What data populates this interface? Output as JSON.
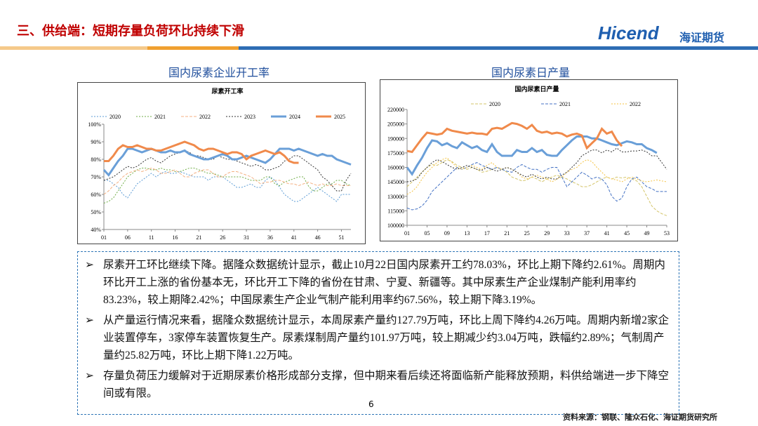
{
  "header": {
    "title": "三、供给端：短期存量负荷环比持续下滑",
    "logo": "Hicend",
    "logo_cn": "海证期货"
  },
  "chart_data": [
    {
      "type": "line",
      "heading": "国内尿素企业开工率",
      "title": "尿素开工率",
      "categories": [
        "01",
        null,
        null,
        null,
        null,
        "06",
        null,
        null,
        null,
        null,
        "11",
        null,
        null,
        null,
        null,
        "16",
        null,
        null,
        null,
        null,
        "21",
        null,
        null,
        null,
        null,
        "26",
        null,
        null,
        null,
        null,
        "31",
        null,
        null,
        null,
        null,
        "36",
        null,
        null,
        null,
        null,
        "41",
        null,
        null,
        null,
        null,
        "46",
        null,
        null,
        null,
        null,
        "51",
        null,
        null
      ],
      "ylim": [
        40,
        100
      ],
      "yticks": [
        {
          "value": 40,
          "label": "40%"
        },
        {
          "value": 50,
          "label": "50%"
        },
        {
          "value": 60,
          "label": "60%"
        },
        {
          "value": 70,
          "label": "70%"
        },
        {
          "value": 80,
          "label": "80%"
        },
        {
          "value": 90,
          "label": "90%"
        },
        {
          "value": 100,
          "label": "100%"
        }
      ],
      "series": [
        {
          "name": "2020",
          "color": "#5b9bd5",
          "dash": "dotted",
          "values": [
            68,
            68,
            66,
            64,
            60,
            58,
            62,
            66,
            68,
            70,
            72,
            70,
            72,
            73,
            72,
            72,
            73,
            72,
            71,
            70,
            70,
            70,
            68,
            70,
            70,
            70,
            68,
            66,
            64,
            64,
            65,
            66,
            64,
            64,
            68,
            70,
            68,
            64,
            60,
            58,
            56,
            56,
            58,
            60,
            62,
            64,
            62,
            60,
            58,
            56,
            60,
            60,
            60
          ]
        },
        {
          "name": "2021",
          "color": "#70ad47",
          "dash": "dotted",
          "values": [
            55,
            56,
            58,
            62,
            66,
            70,
            72,
            74,
            75,
            75,
            74,
            74,
            75,
            74,
            74,
            73,
            73,
            74,
            75,
            75,
            74,
            73,
            72,
            72,
            71,
            70,
            70,
            70,
            70,
            70,
            69,
            68,
            68,
            68,
            70,
            70,
            66,
            65,
            67,
            68,
            69,
            70,
            70,
            65,
            62,
            62,
            64,
            66,
            66,
            68,
            68,
            66,
            65
          ]
        },
        {
          "name": "2022",
          "color": "#f4b183",
          "dash": "dashed",
          "values": [
            60,
            62,
            65,
            67,
            70,
            72,
            73,
            74,
            73,
            74,
            75,
            74,
            72,
            72,
            73,
            74,
            72,
            70,
            70,
            72,
            73,
            74,
            74,
            72,
            70,
            70,
            72,
            73,
            73,
            72,
            71,
            70,
            68,
            66,
            67,
            67,
            68,
            68,
            67,
            66,
            66,
            65,
            66,
            67,
            66,
            65,
            66,
            65,
            65,
            66,
            65,
            65,
            65
          ]
        },
        {
          "name": "2023",
          "color": "#333333",
          "dash": "dotted",
          "values": [
            68,
            69,
            70,
            72,
            74,
            76,
            75,
            76,
            78,
            80,
            81,
            79,
            78,
            80,
            82,
            83,
            84,
            85,
            84,
            82,
            82,
            81,
            80,
            80,
            82,
            81,
            80,
            80,
            79,
            78,
            77,
            76,
            77,
            76,
            74,
            74,
            75,
            76,
            79,
            80,
            82,
            82,
            80,
            78,
            76,
            74,
            70,
            68,
            65,
            62,
            62,
            68,
            72
          ]
        },
        {
          "name": "2024",
          "color": "#6a9fd8",
          "dash": "solid",
          "values": [
            74,
            71,
            75,
            79,
            82,
            86,
            86,
            85,
            84,
            85,
            86,
            85,
            84,
            84,
            85,
            84,
            84,
            85,
            83,
            82,
            81,
            80,
            80,
            81,
            82,
            83,
            82,
            80,
            80,
            81,
            82,
            81,
            80,
            79,
            78,
            80,
            83,
            86,
            86,
            86,
            85,
            86,
            85,
            84,
            83,
            82,
            83,
            82,
            82,
            80,
            79,
            78,
            77
          ]
        },
        {
          "name": "2025",
          "color": "#f08a4b",
          "dash": "solid",
          "values": [
            79,
            79,
            82,
            86,
            88,
            87,
            87,
            88,
            87,
            86,
            86,
            85,
            85,
            86,
            87,
            88,
            89,
            90,
            89,
            88,
            86,
            85,
            86,
            86,
            85,
            84,
            83,
            84,
            84,
            83,
            80,
            82,
            83,
            84,
            85,
            84,
            83,
            84,
            82,
            79,
            78,
            78,
            null,
            null,
            null,
            null,
            null,
            null,
            null,
            null,
            null,
            null,
            null
          ]
        }
      ]
    },
    {
      "type": "line",
      "heading": "国内尿素日产量",
      "title": "国内尿素日产量",
      "categories": [
        "01",
        null,
        null,
        null,
        "05",
        null,
        null,
        null,
        "09",
        null,
        null,
        null,
        "13",
        null,
        null,
        null,
        "17",
        null,
        null,
        null,
        "21",
        null,
        null,
        null,
        "25",
        null,
        null,
        null,
        "29",
        null,
        null,
        null,
        "33",
        null,
        null,
        null,
        "37",
        null,
        null,
        null,
        "41",
        null,
        null,
        null,
        "45",
        null,
        null,
        null,
        "49",
        null,
        null,
        null,
        "53"
      ],
      "ylim": [
        100000,
        220000
      ],
      "yticks": [
        100000,
        115000,
        130000,
        145000,
        160000,
        175000,
        190000,
        205000,
        220000
      ],
      "series": [
        {
          "name": "2020",
          "color": "#d4c56a",
          "dash": "dashed",
          "values": [
            140000,
            145000,
            150000,
            155000,
            160000,
            163000,
            162000,
            165000,
            168000,
            166000,
            162000,
            160000,
            158000,
            160000,
            158000,
            155000,
            156000,
            158000,
            160000,
            158000,
            155000,
            150000,
            148000,
            146000,
            147000,
            150000,
            148000,
            145000,
            148000,
            150000,
            152000,
            150000,
            148000,
            145000,
            143000,
            140000,
            140000,
            142000,
            145000,
            148000,
            150000,
            148000,
            150000,
            149000,
            150000,
            148000,
            146000,
            140000,
            130000,
            120000,
            115000,
            112000,
            110000
          ]
        },
        {
          "name": "2021",
          "color": "#4472c4",
          "dash": "dashed",
          "values": [
            118000,
            116000,
            117000,
            120000,
            126000,
            135000,
            140000,
            145000,
            150000,
            155000,
            160000,
            158000,
            160000,
            163000,
            165000,
            162000,
            160000,
            158000,
            160000,
            158000,
            156000,
            155000,
            160000,
            163000,
            160000,
            158000,
            158000,
            155000,
            158000,
            160000,
            160000,
            150000,
            140000,
            145000,
            150000,
            155000,
            152000,
            148000,
            150000,
            148000,
            142000,
            130000,
            125000,
            128000,
            140000,
            148000,
            150000,
            145000,
            140000,
            138000,
            135000,
            135000,
            135000
          ]
        },
        {
          "name": "2022",
          "color": "#f5c342",
          "dash": "dotted",
          "values": [
            132000,
            135000,
            140000,
            148000,
            155000,
            160000,
            165000,
            168000,
            170000,
            165000,
            160000,
            158000,
            160000,
            162000,
            160000,
            158000,
            162000,
            165000,
            160000,
            158000,
            160000,
            158000,
            155000,
            150000,
            148000,
            150000,
            152000,
            150000,
            148000,
            145000,
            148000,
            150000,
            155000,
            158000,
            160000,
            165000,
            168000,
            166000,
            160000,
            155000,
            150000,
            148000,
            147000,
            145000,
            148000,
            150000,
            148000,
            146000,
            145000,
            146000,
            147000,
            146000,
            145000
          ]
        },
        {
          "color": "#333333",
          "dash": "dotted",
          "values": [
            145000,
            146000,
            148000,
            155000,
            160000,
            165000,
            168000,
            166000,
            163000,
            160000,
            158000,
            160000,
            162000,
            160000,
            158000,
            157000,
            160000,
            158000,
            156000,
            158000,
            160000,
            158000,
            155000,
            152000,
            150000,
            153000,
            150000,
            148000,
            150000,
            148000,
            148000,
            152000,
            155000,
            160000,
            165000,
            172000,
            175000,
            178000,
            178000,
            175000,
            178000,
            176000,
            180000,
            176000,
            176000,
            177000,
            177000,
            178000,
            176000,
            172000,
            172000,
            165000,
            158000
          ]
        },
        {
          "color": "#6a9fd8",
          "dash": "solid",
          "values": [
            160000,
            153000,
            162000,
            170000,
            180000,
            188000,
            187000,
            183000,
            185000,
            182000,
            180000,
            186000,
            183000,
            180000,
            182000,
            178000,
            176000,
            184000,
            176000,
            172000,
            172000,
            172000,
            178000,
            176000,
            176000,
            180000,
            176000,
            178000,
            173000,
            172000,
            172000,
            178000,
            183000,
            188000,
            192000,
            192000,
            192000,
            190000,
            190000,
            188000,
            186000,
            184000,
            183000,
            185000,
            187000,
            186000,
            184000,
            184000,
            180000,
            178000,
            175000,
            null,
            null
          ]
        },
        {
          "color": "#f08a4b",
          "dash": "solid",
          "values": [
            177000,
            176000,
            183000,
            190000,
            196000,
            195000,
            194000,
            195000,
            200000,
            198000,
            197000,
            196000,
            195000,
            196000,
            195000,
            195000,
            194000,
            200000,
            201000,
            200000,
            203000,
            206000,
            205000,
            203000,
            200000,
            204000,
            198000,
            196000,
            197000,
            195000,
            196000,
            195000,
            192000,
            194000,
            195000,
            193000,
            180000,
            185000,
            190000,
            200000,
            195000,
            197000,
            188000,
            182000,
            null,
            null,
            null,
            null,
            null,
            null,
            null,
            null,
            null
          ]
        }
      ]
    }
  ],
  "bullets": [
    "尿素开工环比继续下降。据隆众数据统计显示，截止10月22日国内尿素开工约78.03%，环比上期下降约2.61%。周期内环比开工上涨的省份基本无，环比开工下降的省份在甘肃、宁夏、新疆等。其中尿素生产企业煤制产能利用率约83.23%，较上期降2.42%；中国尿素生产企业气制产能利用率约67.56%，较上期下降3.19%。",
    "从产量运行情况来看，据隆众数据统计显示，本周尿素产量约127.79万吨，环比上周下降约4.26万吨。周期内新增2家企业装置停车，3家停车装置恢复生产。尿素煤制周产量约101.97万吨，较上期减少约3.04万吨，跌幅约2.89%；气制周产量约25.82万吨，环比上期下降1.22万吨。",
    "存量负荷压力缓解对于近期尿素价格形成部分支撑，但中期来看后续还将面临新产能释放预期，料供给端进一步下降空间或有限。"
  ],
  "page_number": "6",
  "source": "资料来源：钢联、隆众石化、海证期货研究所"
}
